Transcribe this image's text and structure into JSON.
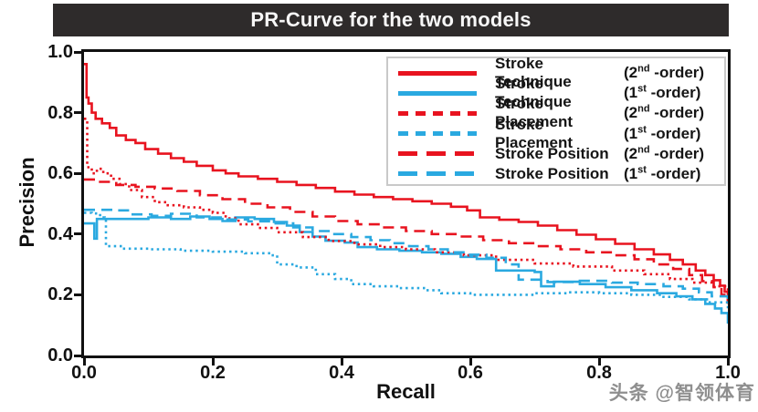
{
  "watermark": {
    "text": "头条 @智领体育"
  },
  "chart_data": {
    "type": "line",
    "title": "PR-Curve for the two models",
    "xlabel": "Recall",
    "ylabel": "Precision",
    "xlim": [
      0,
      1
    ],
    "ylim": [
      0,
      1
    ],
    "x_ticks": [
      "0.0",
      "0.2",
      "0.4",
      "0.6",
      "0.8",
      "1.0"
    ],
    "y_ticks": [
      "0.0",
      "0.2",
      "0.4",
      "0.6",
      "0.8",
      "1.0"
    ],
    "grid": false,
    "legend_position": "upper right",
    "colors": {
      "red": "#e8131f",
      "blue": "#2aa9e0"
    },
    "series": [
      {
        "id": "stroke-technique-2nd",
        "name": "Stroke Technique",
        "order_base": "(2",
        "order_sup": "nd",
        "order_rest": " -order)",
        "color": "#e8131f",
        "style": "solid",
        "points": [
          [
            0,
            0.96
          ],
          [
            0.004,
            0.85
          ],
          [
            0.007,
            0.83
          ],
          [
            0.012,
            0.8
          ],
          [
            0.018,
            0.78
          ],
          [
            0.028,
            0.765
          ],
          [
            0.04,
            0.75
          ],
          [
            0.05,
            0.725
          ],
          [
            0.065,
            0.71
          ],
          [
            0.08,
            0.7
          ],
          [
            0.095,
            0.68
          ],
          [
            0.115,
            0.665
          ],
          [
            0.135,
            0.65
          ],
          [
            0.155,
            0.638
          ],
          [
            0.175,
            0.625
          ],
          [
            0.2,
            0.61
          ],
          [
            0.22,
            0.6
          ],
          [
            0.24,
            0.59
          ],
          [
            0.27,
            0.582
          ],
          [
            0.3,
            0.572
          ],
          [
            0.33,
            0.562
          ],
          [
            0.36,
            0.552
          ],
          [
            0.39,
            0.54
          ],
          [
            0.42,
            0.53
          ],
          [
            0.45,
            0.522
          ],
          [
            0.48,
            0.515
          ],
          [
            0.51,
            0.508
          ],
          [
            0.54,
            0.5
          ],
          [
            0.57,
            0.49
          ],
          [
            0.595,
            0.478
          ],
          [
            0.615,
            0.455
          ],
          [
            0.645,
            0.447
          ],
          [
            0.675,
            0.44
          ],
          [
            0.705,
            0.428
          ],
          [
            0.735,
            0.413
          ],
          [
            0.765,
            0.398
          ],
          [
            0.795,
            0.383
          ],
          [
            0.825,
            0.368
          ],
          [
            0.855,
            0.35
          ],
          [
            0.885,
            0.333
          ],
          [
            0.91,
            0.315
          ],
          [
            0.93,
            0.3
          ],
          [
            0.95,
            0.28
          ],
          [
            0.965,
            0.265
          ],
          [
            0.978,
            0.248
          ],
          [
            0.988,
            0.23
          ],
          [
            0.995,
            0.21
          ],
          [
            1,
            0.17
          ]
        ]
      },
      {
        "id": "stroke-technique-1st",
        "name": "Stroke Technique",
        "order_base": "(1",
        "order_sup": "st",
        "order_rest": " -order)",
        "color": "#2aa9e0",
        "style": "solid",
        "points": [
          [
            0,
            0.435
          ],
          [
            0.013,
            0.435
          ],
          [
            0.016,
            0.385
          ],
          [
            0.02,
            0.45
          ],
          [
            0.06,
            0.45
          ],
          [
            0.1,
            0.455
          ],
          [
            0.135,
            0.45
          ],
          [
            0.165,
            0.458
          ],
          [
            0.195,
            0.45
          ],
          [
            0.215,
            0.443
          ],
          [
            0.235,
            0.455
          ],
          [
            0.265,
            0.45
          ],
          [
            0.295,
            0.44
          ],
          [
            0.315,
            0.428
          ],
          [
            0.335,
            0.407
          ],
          [
            0.355,
            0.392
          ],
          [
            0.375,
            0.378
          ],
          [
            0.405,
            0.372
          ],
          [
            0.425,
            0.357
          ],
          [
            0.455,
            0.35
          ],
          [
            0.49,
            0.345
          ],
          [
            0.525,
            0.34
          ],
          [
            0.555,
            0.335
          ],
          [
            0.585,
            0.325
          ],
          [
            0.61,
            0.318
          ],
          [
            0.64,
            0.28
          ],
          [
            0.7,
            0.275
          ],
          [
            0.71,
            0.228
          ],
          [
            0.73,
            0.243
          ],
          [
            0.77,
            0.235
          ],
          [
            0.81,
            0.225
          ],
          [
            0.85,
            0.215
          ],
          [
            0.89,
            0.205
          ],
          [
            0.92,
            0.195
          ],
          [
            0.945,
            0.185
          ],
          [
            0.965,
            0.17
          ],
          [
            0.98,
            0.155
          ],
          [
            0.99,
            0.14
          ],
          [
            1,
            0.105
          ]
        ]
      },
      {
        "id": "stroke-placement-2nd",
        "name": "Stroke Placement",
        "order_base": "(2",
        "order_sup": "nd",
        "order_rest": " -order)",
        "color": "#e8131f",
        "style": "dotted",
        "points": [
          [
            0,
            0.78
          ],
          [
            0.005,
            0.62
          ],
          [
            0.012,
            0.6
          ],
          [
            0.02,
            0.615
          ],
          [
            0.03,
            0.6
          ],
          [
            0.042,
            0.582
          ],
          [
            0.055,
            0.565
          ],
          [
            0.07,
            0.545
          ],
          [
            0.09,
            0.522
          ],
          [
            0.11,
            0.505
          ],
          [
            0.13,
            0.495
          ],
          [
            0.155,
            0.488
          ],
          [
            0.18,
            0.48
          ],
          [
            0.2,
            0.47
          ],
          [
            0.22,
            0.452
          ],
          [
            0.24,
            0.432
          ],
          [
            0.27,
            0.42
          ],
          [
            0.3,
            0.406
          ],
          [
            0.34,
            0.39
          ],
          [
            0.38,
            0.377
          ],
          [
            0.42,
            0.366
          ],
          [
            0.46,
            0.357
          ],
          [
            0.5,
            0.35
          ],
          [
            0.545,
            0.34
          ],
          [
            0.59,
            0.33
          ],
          [
            0.64,
            0.315
          ],
          [
            0.7,
            0.303
          ],
          [
            0.76,
            0.293
          ],
          [
            0.82,
            0.28
          ],
          [
            0.87,
            0.268
          ],
          [
            0.91,
            0.252
          ],
          [
            0.945,
            0.24
          ],
          [
            0.975,
            0.228
          ],
          [
            1,
            0.21
          ]
        ]
      },
      {
        "id": "stroke-placement-1st",
        "name": "Stroke Placement",
        "order_base": "(1",
        "order_sup": "st",
        "order_rest": " -order)",
        "color": "#2aa9e0",
        "style": "dotted",
        "points": [
          [
            0,
            0.47
          ],
          [
            0.012,
            0.468
          ],
          [
            0.025,
            0.455
          ],
          [
            0.032,
            0.452
          ],
          [
            0.034,
            0.36
          ],
          [
            0.06,
            0.352
          ],
          [
            0.1,
            0.35
          ],
          [
            0.15,
            0.345
          ],
          [
            0.2,
            0.342
          ],
          [
            0.25,
            0.337
          ],
          [
            0.29,
            0.33
          ],
          [
            0.3,
            0.3
          ],
          [
            0.33,
            0.29
          ],
          [
            0.36,
            0.268
          ],
          [
            0.39,
            0.252
          ],
          [
            0.415,
            0.235
          ],
          [
            0.45,
            0.228
          ],
          [
            0.49,
            0.222
          ],
          [
            0.53,
            0.215
          ],
          [
            0.555,
            0.205
          ],
          [
            0.6,
            0.2
          ],
          [
            0.65,
            0.2
          ],
          [
            0.7,
            0.205
          ],
          [
            0.75,
            0.208
          ],
          [
            0.8,
            0.205
          ],
          [
            0.85,
            0.2
          ],
          [
            0.9,
            0.193
          ],
          [
            0.94,
            0.185
          ],
          [
            0.97,
            0.175
          ],
          [
            1,
            0.155
          ]
        ]
      },
      {
        "id": "stroke-position-2nd",
        "name": "Stroke Position",
        "order_base": "(2",
        "order_sup": "nd",
        "order_rest": " -order)",
        "color": "#e8131f",
        "style": "dashed",
        "points": [
          [
            0,
            0.58
          ],
          [
            0.025,
            0.572
          ],
          [
            0.05,
            0.562
          ],
          [
            0.08,
            0.556
          ],
          [
            0.11,
            0.55
          ],
          [
            0.145,
            0.542
          ],
          [
            0.18,
            0.528
          ],
          [
            0.215,
            0.515
          ],
          [
            0.25,
            0.5
          ],
          [
            0.285,
            0.488
          ],
          [
            0.32,
            0.473
          ],
          [
            0.355,
            0.458
          ],
          [
            0.39,
            0.443
          ],
          [
            0.425,
            0.432
          ],
          [
            0.46,
            0.422
          ],
          [
            0.5,
            0.41
          ],
          [
            0.54,
            0.4
          ],
          [
            0.58,
            0.392
          ],
          [
            0.62,
            0.38
          ],
          [
            0.66,
            0.37
          ],
          [
            0.7,
            0.36
          ],
          [
            0.74,
            0.35
          ],
          [
            0.78,
            0.34
          ],
          [
            0.82,
            0.33
          ],
          [
            0.855,
            0.317
          ],
          [
            0.885,
            0.3
          ],
          [
            0.915,
            0.285
          ],
          [
            0.94,
            0.265
          ],
          [
            0.96,
            0.245
          ],
          [
            0.978,
            0.225
          ],
          [
            0.99,
            0.2
          ],
          [
            1,
            0.18
          ]
        ]
      },
      {
        "id": "stroke-position-1st",
        "name": "Stroke Position",
        "order_base": "(1",
        "order_sup": "st",
        "order_rest": " -order)",
        "color": "#2aa9e0",
        "style": "dashed",
        "points": [
          [
            0,
            0.48
          ],
          [
            0.05,
            0.478
          ],
          [
            0.07,
            0.465
          ],
          [
            0.105,
            0.46
          ],
          [
            0.135,
            0.467
          ],
          [
            0.175,
            0.455
          ],
          [
            0.215,
            0.448
          ],
          [
            0.255,
            0.442
          ],
          [
            0.295,
            0.435
          ],
          [
            0.325,
            0.422
          ],
          [
            0.355,
            0.41
          ],
          [
            0.385,
            0.4
          ],
          [
            0.415,
            0.39
          ],
          [
            0.445,
            0.38
          ],
          [
            0.475,
            0.37
          ],
          [
            0.505,
            0.36
          ],
          [
            0.535,
            0.35
          ],
          [
            0.565,
            0.34
          ],
          [
            0.595,
            0.332
          ],
          [
            0.625,
            0.322
          ],
          [
            0.655,
            0.3
          ],
          [
            0.675,
            0.25
          ],
          [
            0.72,
            0.242
          ],
          [
            0.77,
            0.246
          ],
          [
            0.82,
            0.24
          ],
          [
            0.86,
            0.235
          ],
          [
            0.9,
            0.228
          ],
          [
            0.93,
            0.22
          ],
          [
            0.955,
            0.208
          ],
          [
            0.975,
            0.195
          ],
          [
            1,
            0.17
          ]
        ]
      }
    ]
  }
}
